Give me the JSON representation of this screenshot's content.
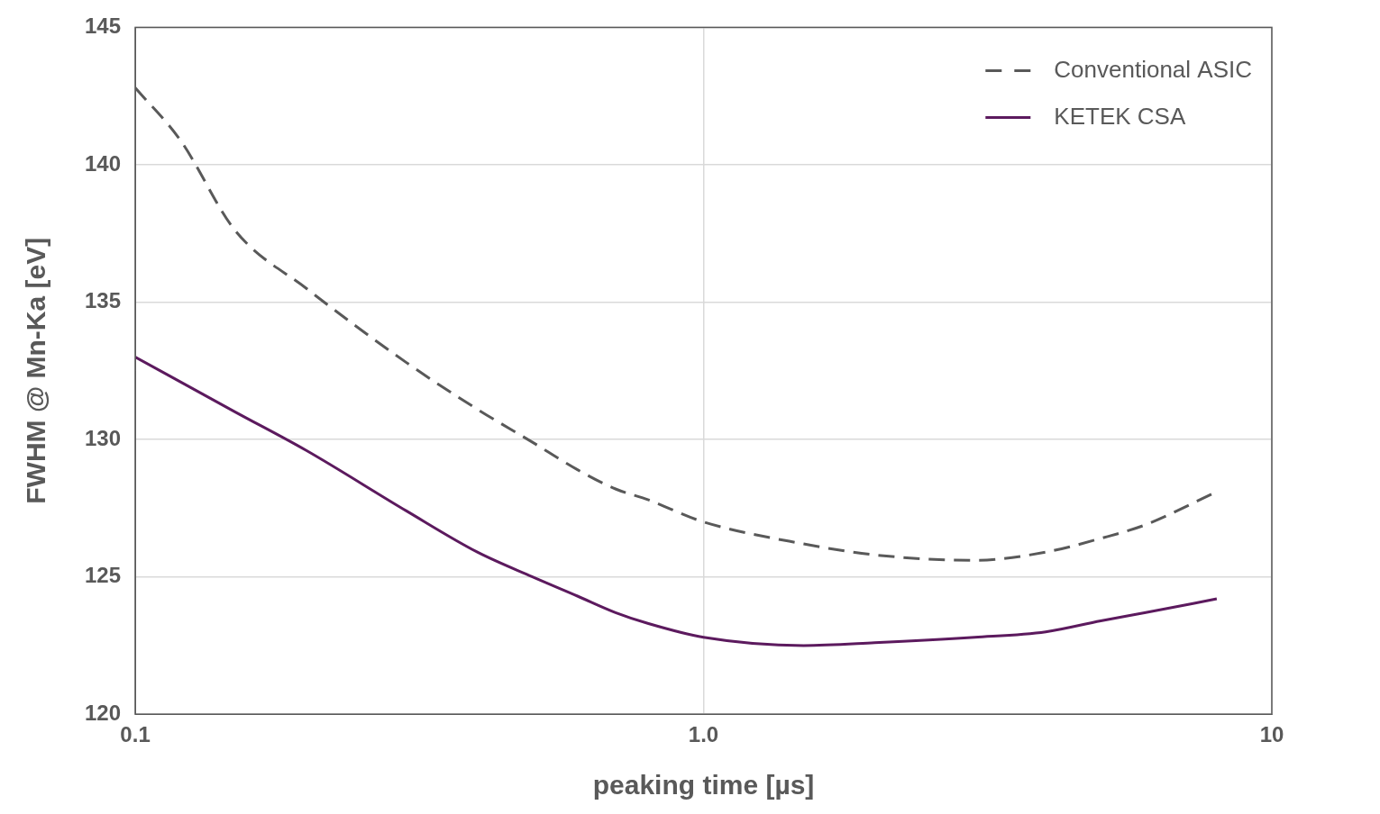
{
  "chart_data": {
    "type": "line",
    "x_label": "peaking time [µs]",
    "y_label": "FWHM @ Mn-Ka [eV]",
    "log": "x",
    "xlim": [
      0.1,
      10
    ],
    "xticks": [
      0.1,
      {
        "value": 1,
        "label": "1.0"
      },
      10
    ],
    "ylim": [
      120,
      145
    ],
    "yticks": [
      120,
      125,
      130,
      135,
      140,
      145
    ],
    "grid": true,
    "legend": "upper right",
    "series": [
      {
        "name": "Conventional ASIC",
        "color": "#595959",
        "line_style": "dashed",
        "x": [
          0.1,
          0.12,
          0.15,
          0.2,
          0.3,
          0.4,
          0.5,
          0.6,
          0.7,
          0.8,
          1.0,
          1.5,
          2,
          3,
          4,
          5,
          6,
          8
        ],
        "values": [
          142.8,
          140.9,
          137.6,
          135.5,
          132.8,
          131.1,
          129.9,
          128.9,
          128.2,
          127.8,
          127.0,
          126.2,
          125.8,
          125.6,
          125.9,
          126.4,
          126.9,
          128.1
        ]
      },
      {
        "name": "KETEK CSA",
        "color": "#5c1a5e",
        "line_style": "solid",
        "x": [
          0.1,
          0.15,
          0.2,
          0.3,
          0.4,
          0.5,
          0.6,
          0.7,
          0.8,
          1.0,
          1.5,
          2,
          3,
          4,
          5,
          6,
          8
        ],
        "values": [
          133.0,
          131.0,
          129.6,
          127.4,
          125.9,
          125.0,
          124.3,
          123.7,
          123.3,
          122.8,
          122.5,
          122.6,
          122.8,
          123.0,
          123.4,
          123.7,
          124.2
        ]
      }
    ]
  }
}
